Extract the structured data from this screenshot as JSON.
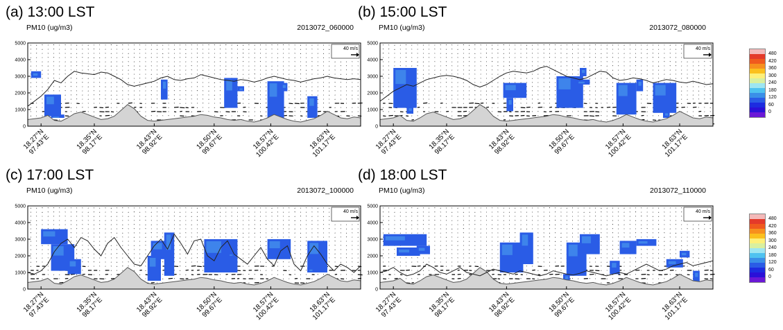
{
  "colors": {
    "plume": "#2a5ce6",
    "plume_light": "#4fa6ee",
    "terrain": "#d4d4d4",
    "axis": "#000000"
  },
  "chart_data": [
    {
      "type": "cross-section",
      "title": "(a) 13:00 LST",
      "variable": "PM10 (ug/m3)",
      "timestamp": "2013072_060000",
      "vector_ref": "40 m/s",
      "ylim": [
        0,
        5000
      ],
      "yticks": [
        "0",
        "1000",
        "2000",
        "3000",
        "4000",
        "5000"
      ],
      "xticks": [
        {
          "lat": "18.27°N",
          "lon": "97.43°E"
        },
        {
          "lat": "18.35°N",
          "lon": "98.17°E"
        },
        {
          "lat": "18.43°N",
          "lon": "98.92°E"
        },
        {
          "lat": "18.50°N",
          "lon": "99.67°E"
        },
        {
          "lat": "18.57°N",
          "lon": "100.42°E"
        },
        {
          "lat": "18.63°N",
          "lon": "101.17°E"
        }
      ]
    },
    {
      "type": "cross-section",
      "title": "(b) 15:00 LST",
      "variable": "PM10 (ug/m3)",
      "timestamp": "2013072_080000",
      "vector_ref": "40 m/s",
      "ylim": [
        0,
        5000
      ],
      "yticks": [
        "0",
        "1000",
        "2000",
        "3000",
        "4000",
        "5000"
      ],
      "xticks": [
        {
          "lat": "18.27°N",
          "lon": "97.43°E"
        },
        {
          "lat": "18.35°N",
          "lon": "98.17°E"
        },
        {
          "lat": "18.43°N",
          "lon": "98.92°E"
        },
        {
          "lat": "18.50°N",
          "lon": "99.67°E"
        },
        {
          "lat": "18.57°N",
          "lon": "100.42°E"
        },
        {
          "lat": "18.63°N",
          "lon": "101.17°E"
        }
      ]
    },
    {
      "type": "cross-section",
      "title": "(c) 17:00 LST",
      "variable": "PM10 (ug/m3)",
      "timestamp": "2013072_100000",
      "vector_ref": "40 m/s",
      "ylim": [
        0,
        5000
      ],
      "yticks": [
        "0",
        "1000",
        "2000",
        "3000",
        "4000",
        "5000"
      ],
      "xticks": [
        {
          "lat": "18.27°N",
          "lon": "97.43°E"
        },
        {
          "lat": "18.35°N",
          "lon": "98.17°E"
        },
        {
          "lat": "18.43°N",
          "lon": "98.92°E"
        },
        {
          "lat": "18.50°N",
          "lon": "99.67°E"
        },
        {
          "lat": "18.57°N",
          "lon": "100.42°E"
        },
        {
          "lat": "18.63°N",
          "lon": "101.17°E"
        }
      ]
    },
    {
      "type": "cross-section",
      "title": "(d) 18:00 LST",
      "variable": "PM10 (ug/m3)",
      "timestamp": "2013072_110000",
      "vector_ref": "40 m/s",
      "ylim": [
        0,
        5000
      ],
      "yticks": [
        "0",
        "1000",
        "2000",
        "3000",
        "4000",
        "5000"
      ],
      "xticks": [
        {
          "lat": "18.27°N",
          "lon": "97.43°E"
        },
        {
          "lat": "18.35°N",
          "lon": "98.17°E"
        },
        {
          "lat": "18.43°N",
          "lon": "98.92°E"
        },
        {
          "lat": "18.50°N",
          "lon": "99.67°E"
        },
        {
          "lat": "18.57°N",
          "lon": "100.42°E"
        },
        {
          "lat": "18.63°N",
          "lon": "101.17°E"
        }
      ]
    }
  ],
  "colorbar": {
    "labels": [
      "480",
      "420",
      "360",
      "300",
      "240",
      "180",
      "120",
      "60",
      "0"
    ],
    "colors": [
      "#f4b9b9",
      "#e43a2a",
      "#f05a1e",
      "#f7901e",
      "#fbc01e",
      "#fdf07a",
      "#d9f0a0",
      "#9ee6f2",
      "#4fc2f0",
      "#3a8fe8",
      "#2a5ce6",
      "#1d2ce0",
      "#2a10d8",
      "#6a18d6"
    ]
  }
}
